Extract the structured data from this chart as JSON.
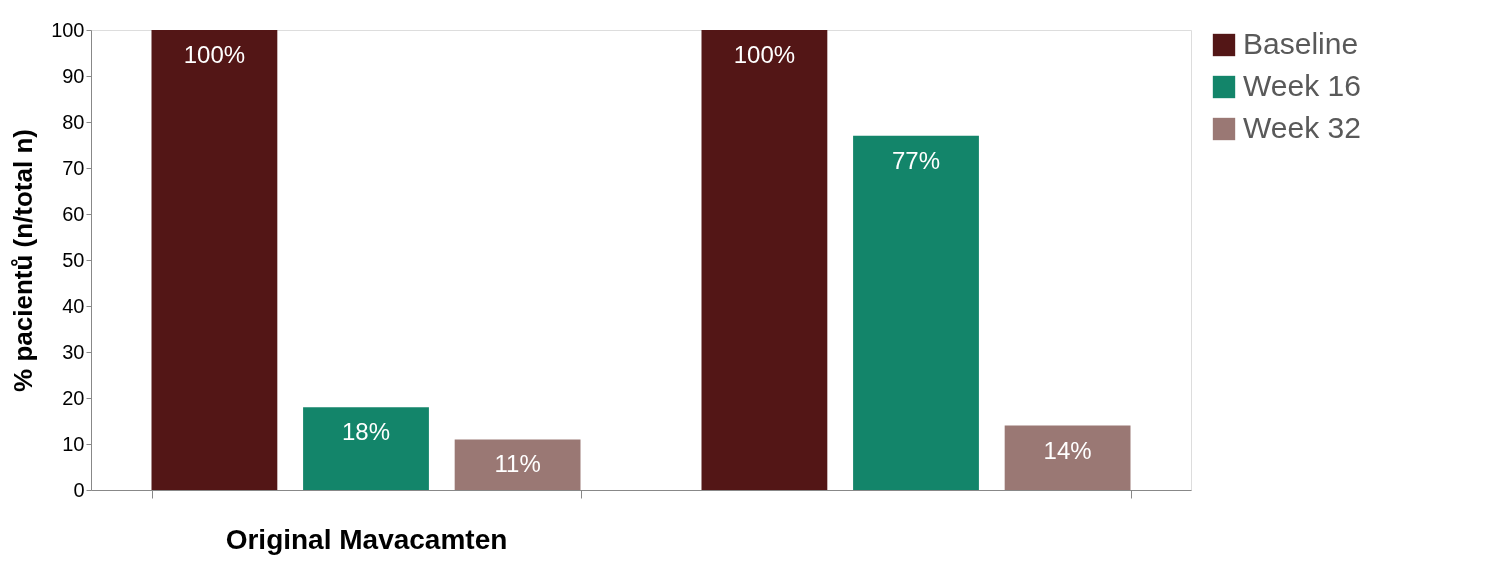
{
  "chart_data": {
    "type": "bar",
    "ylabel": "% pacientů (n/total n)",
    "categories": [
      "Original Mavacamten",
      null
    ],
    "series": [
      {
        "name": "Baseline",
        "color": "#531616",
        "values": [
          100,
          100
        ],
        "value_labels": [
          "100%",
          "100%"
        ]
      },
      {
        "name": "Week 16",
        "color": "#13856a",
        "values": [
          18,
          77
        ],
        "value_labels": [
          "18%",
          "77%"
        ]
      },
      {
        "name": "Week 32",
        "color": "#9a7874",
        "values": [
          11,
          14
        ],
        "value_labels": [
          "11%",
          "14%"
        ]
      }
    ],
    "ylim": [
      0,
      100
    ],
    "yticks": [
      0,
      10,
      20,
      30,
      40,
      50,
      60,
      70,
      80,
      90,
      100
    ],
    "grid": false,
    "legend": "right"
  }
}
